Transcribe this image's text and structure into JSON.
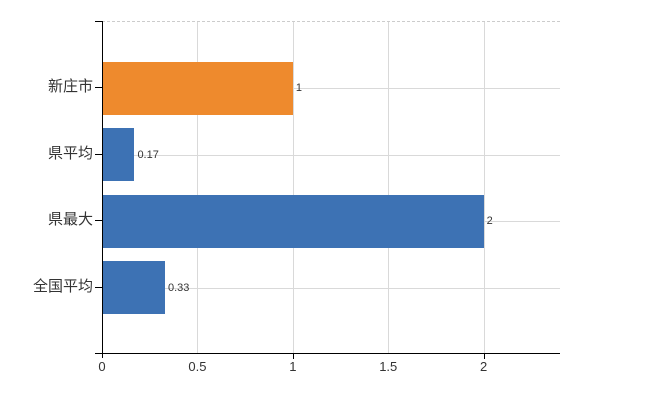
{
  "canvas": {
    "background": "#ffffff"
  },
  "chart_data": {
    "type": "bar",
    "orientation": "horizontal",
    "title": "",
    "categories": [
      "新庄市",
      "県平均",
      "県最大",
      "全国平均"
    ],
    "values": [
      1,
      0.17,
      2,
      0.33
    ],
    "value_labels": [
      "1",
      "0.17",
      "2",
      "0.33"
    ],
    "bar_colors": [
      "#ee8a2d",
      "#3d72b4",
      "#3d72b4",
      "#3d72b4"
    ],
    "highlight_color": "#ee8a2d",
    "default_bar_color": "#3d72b4",
    "x_axis": {
      "ticks": [
        0,
        0.5,
        1,
        1.5,
        2
      ],
      "tick_labels": [
        "0",
        "0.5",
        "1",
        "1.5",
        "2"
      ],
      "range": [
        0,
        2.4
      ],
      "major_tick_interval": 1
    },
    "grid": {
      "enabled": true,
      "color": "#d9d9d9",
      "top_border_color": "#cccccc",
      "top_border_style": "dashed"
    },
    "axis_color": "#000000",
    "label_color": "#333333",
    "legend": null
  }
}
